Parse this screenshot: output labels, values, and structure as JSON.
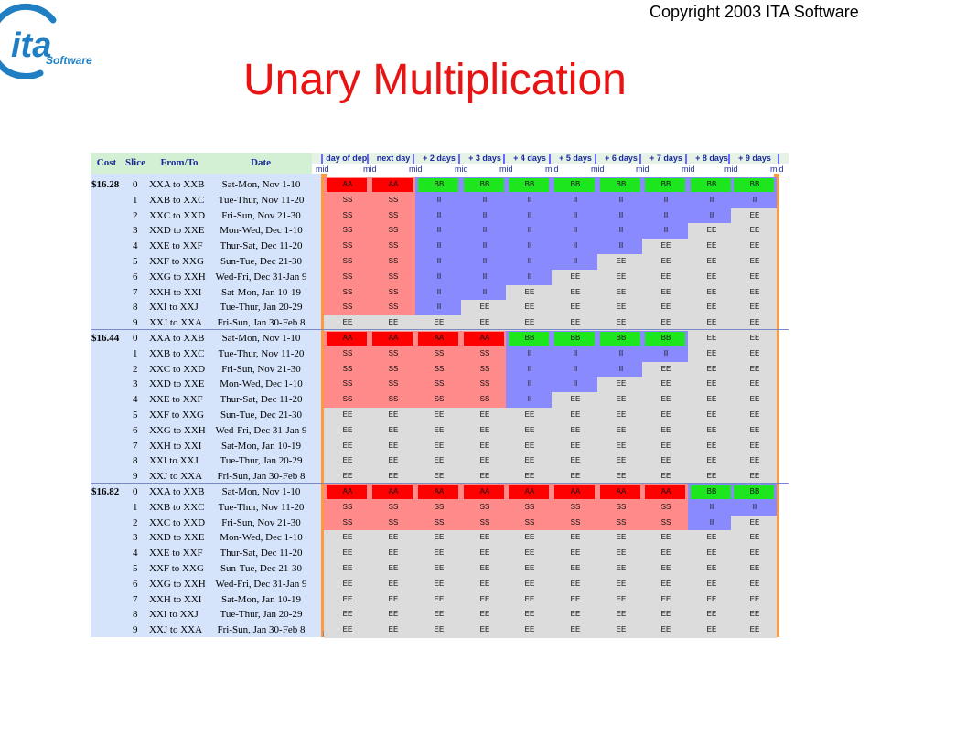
{
  "header": {
    "copyright": "Copyright 2003 ITA Software",
    "title": "Unary  Multiplication",
    "logo_text": "ita",
    "logo_subtext": "Software"
  },
  "table": {
    "left_headers": [
      "Cost",
      "Slice",
      "From/To",
      "Date"
    ],
    "column_headers": [
      "day of dep.",
      "next day",
      "+ 2 days",
      "+ 3 days",
      "+ 4 days",
      "+ 5 days",
      "+ 6 days",
      "+ 7 days",
      "+ 8 days",
      "+ 9 days"
    ],
    "mid_label": "mid",
    "slices": [
      {
        "slice": "0",
        "route": "XXA to XXB",
        "date": "Sat-Mon, Nov 1-10"
      },
      {
        "slice": "1",
        "route": "XXB to XXC",
        "date": "Tue-Thur, Nov 11-20"
      },
      {
        "slice": "2",
        "route": "XXC to XXD",
        "date": "Fri-Sun, Nov 21-30"
      },
      {
        "slice": "3",
        "route": "XXD to XXE",
        "date": "Mon-Wed, Dec 1-10"
      },
      {
        "slice": "4",
        "route": "XXE to XXF",
        "date": "Thur-Sat, Dec 11-20"
      },
      {
        "slice": "5",
        "route": "XXF to XXG",
        "date": "Sun-Tue, Dec 21-30"
      },
      {
        "slice": "6",
        "route": "XXG to XXH",
        "date": "Wed-Fri, Dec 31-Jan 9"
      },
      {
        "slice": "7",
        "route": "XXH to XXI",
        "date": "Sat-Mon, Jan 10-19"
      },
      {
        "slice": "8",
        "route": "XXI to XXJ",
        "date": "Tue-Thur, Jan 20-29"
      },
      {
        "slice": "9",
        "route": "XXJ to XXA",
        "date": "Fri-Sun, Jan 30-Feb 8"
      }
    ],
    "fare_classes": {
      "AA": {
        "color": "#ff0000"
      },
      "SS": {
        "color": "#ff8a8a"
      },
      "BB": {
        "color": "#1ee61e"
      },
      "II": {
        "color": "#8a8aff"
      },
      "EE": {
        "color": "#dcdcdc"
      }
    },
    "blocks": [
      {
        "cost": "$16.28",
        "rows": [
          [
            "AA",
            "AA",
            "BB",
            "BB",
            "BB",
            "BB",
            "BB",
            "BB",
            "BB",
            "BB"
          ],
          [
            "SS",
            "SS",
            "II",
            "II",
            "II",
            "II",
            "II",
            "II",
            "II",
            "II"
          ],
          [
            "SS",
            "SS",
            "II",
            "II",
            "II",
            "II",
            "II",
            "II",
            "II",
            "EE"
          ],
          [
            "SS",
            "SS",
            "II",
            "II",
            "II",
            "II",
            "II",
            "II",
            "EE",
            "EE"
          ],
          [
            "SS",
            "SS",
            "II",
            "II",
            "II",
            "II",
            "II",
            "EE",
            "EE",
            "EE"
          ],
          [
            "SS",
            "SS",
            "II",
            "II",
            "II",
            "II",
            "EE",
            "EE",
            "EE",
            "EE"
          ],
          [
            "SS",
            "SS",
            "II",
            "II",
            "II",
            "EE",
            "EE",
            "EE",
            "EE",
            "EE"
          ],
          [
            "SS",
            "SS",
            "II",
            "II",
            "EE",
            "EE",
            "EE",
            "EE",
            "EE",
            "EE"
          ],
          [
            "SS",
            "SS",
            "II",
            "EE",
            "EE",
            "EE",
            "EE",
            "EE",
            "EE",
            "EE"
          ],
          [
            "EE",
            "EE",
            "EE",
            "EE",
            "EE",
            "EE",
            "EE",
            "EE",
            "EE",
            "EE"
          ]
        ]
      },
      {
        "cost": "$16.44",
        "rows": [
          [
            "AA",
            "AA",
            "AA",
            "AA",
            "BB",
            "BB",
            "BB",
            "BB",
            "EE",
            "EE"
          ],
          [
            "SS",
            "SS",
            "SS",
            "SS",
            "II",
            "II",
            "II",
            "II",
            "EE",
            "EE"
          ],
          [
            "SS",
            "SS",
            "SS",
            "SS",
            "II",
            "II",
            "II",
            "EE",
            "EE",
            "EE"
          ],
          [
            "SS",
            "SS",
            "SS",
            "SS",
            "II",
            "II",
            "EE",
            "EE",
            "EE",
            "EE"
          ],
          [
            "SS",
            "SS",
            "SS",
            "SS",
            "II",
            "EE",
            "EE",
            "EE",
            "EE",
            "EE"
          ],
          [
            "EE",
            "EE",
            "EE",
            "EE",
            "EE",
            "EE",
            "EE",
            "EE",
            "EE",
            "EE"
          ],
          [
            "EE",
            "EE",
            "EE",
            "EE",
            "EE",
            "EE",
            "EE",
            "EE",
            "EE",
            "EE"
          ],
          [
            "EE",
            "EE",
            "EE",
            "EE",
            "EE",
            "EE",
            "EE",
            "EE",
            "EE",
            "EE"
          ],
          [
            "EE",
            "EE",
            "EE",
            "EE",
            "EE",
            "EE",
            "EE",
            "EE",
            "EE",
            "EE"
          ],
          [
            "EE",
            "EE",
            "EE",
            "EE",
            "EE",
            "EE",
            "EE",
            "EE",
            "EE",
            "EE"
          ]
        ]
      },
      {
        "cost": "$16.82",
        "rows": [
          [
            "AA",
            "AA",
            "AA",
            "AA",
            "AA",
            "AA",
            "AA",
            "AA",
            "BB",
            "BB"
          ],
          [
            "SS",
            "SS",
            "SS",
            "SS",
            "SS",
            "SS",
            "SS",
            "SS",
            "II",
            "II"
          ],
          [
            "SS",
            "SS",
            "SS",
            "SS",
            "SS",
            "SS",
            "SS",
            "SS",
            "II",
            "EE"
          ],
          [
            "EE",
            "EE",
            "EE",
            "EE",
            "EE",
            "EE",
            "EE",
            "EE",
            "EE",
            "EE"
          ],
          [
            "EE",
            "EE",
            "EE",
            "EE",
            "EE",
            "EE",
            "EE",
            "EE",
            "EE",
            "EE"
          ],
          [
            "EE",
            "EE",
            "EE",
            "EE",
            "EE",
            "EE",
            "EE",
            "EE",
            "EE",
            "EE"
          ],
          [
            "EE",
            "EE",
            "EE",
            "EE",
            "EE",
            "EE",
            "EE",
            "EE",
            "EE",
            "EE"
          ],
          [
            "EE",
            "EE",
            "EE",
            "EE",
            "EE",
            "EE",
            "EE",
            "EE",
            "EE",
            "EE"
          ],
          [
            "EE",
            "EE",
            "EE",
            "EE",
            "EE",
            "EE",
            "EE",
            "EE",
            "EE",
            "EE"
          ],
          [
            "EE",
            "EE",
            "EE",
            "EE",
            "EE",
            "EE",
            "EE",
            "EE",
            "EE",
            "EE"
          ]
        ]
      }
    ]
  }
}
